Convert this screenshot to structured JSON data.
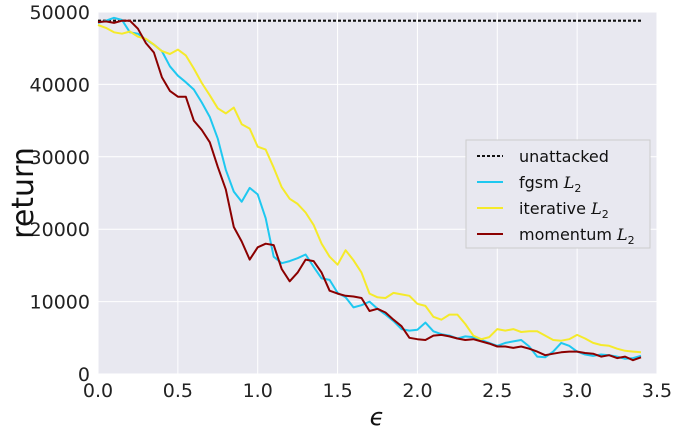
{
  "chart_data": {
    "type": "line",
    "xlabel": "ϵ",
    "ylabel": "return",
    "xlim": [
      0.0,
      3.5
    ],
    "ylim": [
      0,
      50000
    ],
    "xticks": [
      "0.0",
      "0.5",
      "1.0",
      "1.5",
      "2.0",
      "2.5",
      "3.0",
      "3.5"
    ],
    "yticks": [
      "0",
      "10000",
      "20000",
      "30000",
      "40000",
      "50000"
    ],
    "grid": true,
    "legend_position": "center-right",
    "background_color": "#e8e8f0",
    "series": [
      {
        "name": "unattacked",
        "label_base": "unattacked",
        "label_sub": "",
        "color": "#111111",
        "dashed": true,
        "x": [
          0.0,
          3.4
        ],
        "y": [
          48800,
          48800
        ]
      },
      {
        "name": "fgsm L2",
        "label_base": "fgsm ",
        "label_sub": "2",
        "color": "#1ec8f0",
        "dashed": false,
        "x": [
          0.0,
          0.05,
          0.1,
          0.15,
          0.2,
          0.25,
          0.3,
          0.35,
          0.4,
          0.45,
          0.5,
          0.55,
          0.6,
          0.65,
          0.7,
          0.75,
          0.8,
          0.85,
          0.9,
          0.95,
          1.0,
          1.05,
          1.1,
          1.15,
          1.2,
          1.25,
          1.3,
          1.35,
          1.4,
          1.45,
          1.5,
          1.55,
          1.6,
          1.65,
          1.7,
          1.75,
          1.8,
          1.85,
          1.9,
          1.95,
          2.0,
          2.05,
          2.1,
          2.15,
          2.2,
          2.25,
          2.3,
          2.35,
          2.4,
          2.45,
          2.5,
          2.55,
          2.6,
          2.65,
          2.7,
          2.75,
          2.8,
          2.85,
          2.9,
          2.95,
          3.0,
          3.05,
          3.1,
          3.15,
          3.2,
          3.25,
          3.3,
          3.35,
          3.4
        ],
        "y": [
          48500,
          48800,
          49200,
          48900,
          47200,
          47000,
          46200,
          45500,
          44600,
          42500,
          41200,
          40300,
          39300,
          37500,
          35500,
          32500,
          28200,
          25200,
          23800,
          25700,
          24800,
          21500,
          16200,
          15300,
          15600,
          16000,
          16500,
          14800,
          13200,
          13000,
          11200,
          10600,
          9200,
          9500,
          10000,
          9000,
          8200,
          7300,
          6200,
          6000,
          6100,
          7100,
          5900,
          5500,
          5300,
          4900,
          5200,
          5100,
          4700,
          4300,
          3900,
          4300,
          4500,
          4700,
          3800,
          2400,
          2300,
          3100,
          4300,
          3900,
          3100,
          2700,
          2500,
          2700,
          2600,
          2400,
          2100,
          2200,
          2500
        ]
      },
      {
        "name": "iterative L2",
        "label_base": "iterative ",
        "label_sub": "2",
        "color": "#f5ea2a",
        "dashed": false,
        "x": [
          0.0,
          0.05,
          0.1,
          0.15,
          0.2,
          0.25,
          0.3,
          0.35,
          0.4,
          0.45,
          0.5,
          0.55,
          0.6,
          0.65,
          0.7,
          0.75,
          0.8,
          0.85,
          0.9,
          0.95,
          1.0,
          1.05,
          1.1,
          1.15,
          1.2,
          1.25,
          1.3,
          1.35,
          1.4,
          1.45,
          1.5,
          1.55,
          1.6,
          1.65,
          1.7,
          1.75,
          1.8,
          1.85,
          1.9,
          1.95,
          2.0,
          2.05,
          2.1,
          2.15,
          2.2,
          2.25,
          2.3,
          2.35,
          2.4,
          2.45,
          2.5,
          2.55,
          2.6,
          2.65,
          2.7,
          2.75,
          2.8,
          2.85,
          2.9,
          2.95,
          3.0,
          3.05,
          3.1,
          3.15,
          3.2,
          3.25,
          3.3,
          3.35,
          3.4
        ],
        "y": [
          48200,
          47800,
          47200,
          47000,
          47300,
          46600,
          46300,
          45500,
          44600,
          44200,
          44800,
          44000,
          42200,
          40200,
          38500,
          36700,
          36000,
          36800,
          34500,
          33900,
          31400,
          31000,
          28500,
          25800,
          24200,
          23500,
          22300,
          20600,
          18000,
          16200,
          15100,
          17100,
          15700,
          14000,
          11100,
          10600,
          10500,
          11200,
          11000,
          10800,
          9700,
          9400,
          7900,
          7500,
          8200,
          8200,
          6900,
          5300,
          4800,
          5100,
          6200,
          6000,
          6200,
          5800,
          5900,
          5900,
          5300,
          4700,
          4600,
          4800,
          5400,
          4900,
          4300,
          4000,
          3900,
          3500,
          3200,
          3100,
          3000
        ]
      },
      {
        "name": "momentum L2",
        "label_base": "momentum ",
        "label_sub": "2",
        "color": "#8b0000",
        "dashed": false,
        "x": [
          0.0,
          0.05,
          0.1,
          0.15,
          0.2,
          0.25,
          0.3,
          0.35,
          0.4,
          0.45,
          0.5,
          0.55,
          0.6,
          0.65,
          0.7,
          0.75,
          0.8,
          0.85,
          0.9,
          0.95,
          1.0,
          1.05,
          1.1,
          1.15,
          1.2,
          1.25,
          1.3,
          1.35,
          1.4,
          1.45,
          1.5,
          1.55,
          1.6,
          1.65,
          1.7,
          1.75,
          1.8,
          1.85,
          1.9,
          1.95,
          2.0,
          2.05,
          2.1,
          2.15,
          2.2,
          2.25,
          2.3,
          2.35,
          2.4,
          2.45,
          2.5,
          2.55,
          2.6,
          2.65,
          2.7,
          2.75,
          2.8,
          2.85,
          2.9,
          2.95,
          3.0,
          3.05,
          3.1,
          3.15,
          3.2,
          3.25,
          3.3,
          3.35,
          3.4
        ],
        "y": [
          48600,
          48700,
          48500,
          48800,
          48800,
          47700,
          45700,
          44400,
          41000,
          39100,
          38300,
          38300,
          35000,
          33700,
          32000,
          28600,
          25500,
          20300,
          18300,
          15800,
          17500,
          18000,
          17800,
          14500,
          12800,
          14000,
          15800,
          15600,
          14000,
          11500,
          11100,
          10800,
          10700,
          10500,
          8700,
          9000,
          8500,
          7500,
          6600,
          5000,
          4800,
          4700,
          5300,
          5400,
          5200,
          4900,
          4700,
          4800,
          4500,
          4200,
          3800,
          3800,
          3600,
          3800,
          3500,
          3100,
          2600,
          2800,
          3000,
          3100,
          3100,
          2900,
          2800,
          2400,
          2600,
          2200,
          2400,
          1900,
          2300
        ]
      }
    ]
  }
}
